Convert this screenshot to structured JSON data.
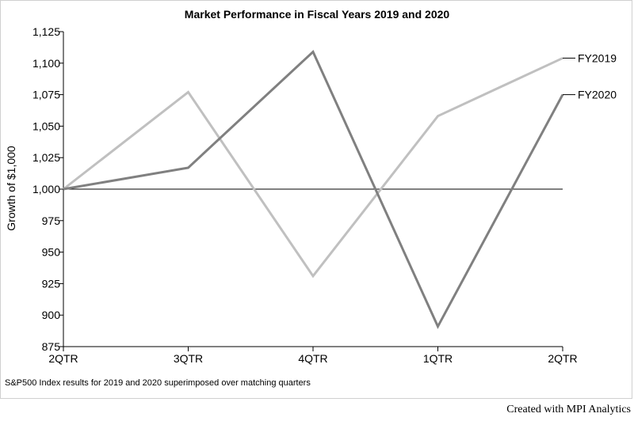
{
  "chart_data": {
    "type": "line",
    "title": "Market Performance in Fiscal Years 2019 and 2020",
    "ylabel": "Growth of $1,000",
    "xlabel": "",
    "categories": [
      "2QTR",
      "3QTR",
      "4QTR",
      "1QTR",
      "2QTR"
    ],
    "ylim": [
      875,
      1125
    ],
    "yticks": [
      875,
      900,
      925,
      950,
      975,
      1000,
      1025,
      1050,
      1075,
      1100,
      1125
    ],
    "ytick_labels": [
      "875",
      "900",
      "925",
      "950",
      "975",
      "1,000",
      "1,025",
      "1,050",
      "1,075",
      "1,100",
      "1,125"
    ],
    "reference_line": 1000,
    "grid": false,
    "series": [
      {
        "name": "FY2019",
        "color": "#c0c0c0",
        "values": [
          1000,
          1077,
          931,
          1058,
          1104
        ]
      },
      {
        "name": "FY2020",
        "color": "#808080",
        "values": [
          1000,
          1017,
          1109,
          891,
          1075
        ]
      }
    ],
    "footnote": "S&P500 Index results for 2019 and 2020 superimposed over matching quarters"
  },
  "credit": "Created with MPI Analytics"
}
